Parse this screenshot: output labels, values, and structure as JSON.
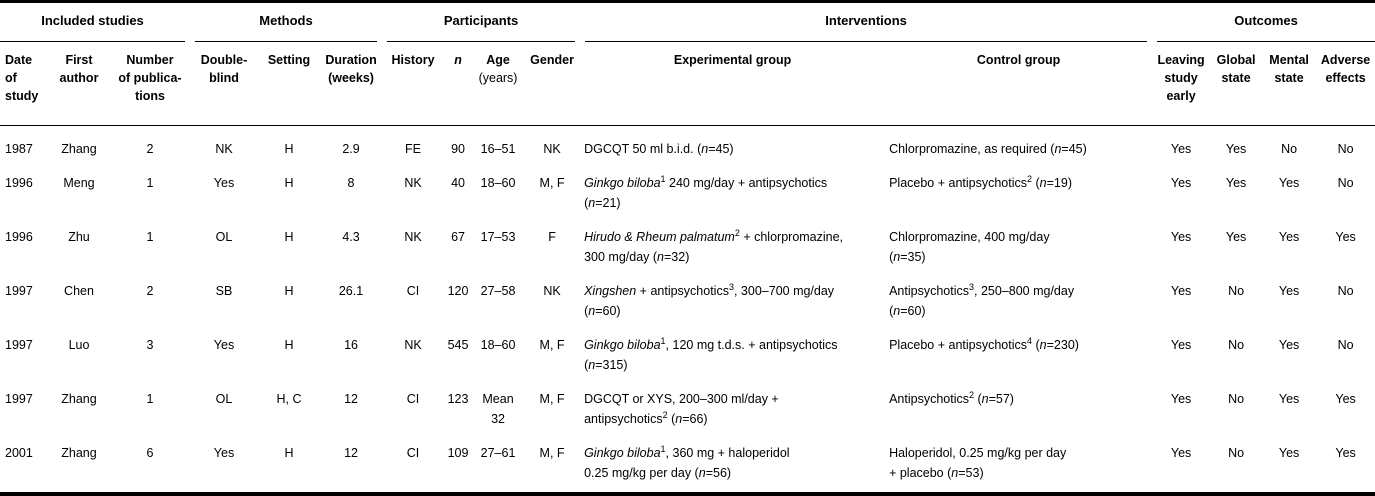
{
  "table": {
    "groups": [
      {
        "label": "Included studies",
        "span": 3
      },
      {
        "label": "Methods",
        "span": 3
      },
      {
        "label": "Participants",
        "span": 4
      },
      {
        "label": "Interventions",
        "span": 2
      },
      {
        "label": "Outcomes",
        "span": 4
      }
    ],
    "columns": [
      {
        "id": "date",
        "lines": [
          {
            "t": "Date"
          },
          {
            "t": "of"
          },
          {
            "t": "study"
          }
        ]
      },
      {
        "id": "author",
        "lines": [
          {
            "t": "First"
          },
          {
            "t": "author"
          }
        ]
      },
      {
        "id": "publications",
        "lines": [
          {
            "t": "Number"
          },
          {
            "t": "of publica-"
          },
          {
            "t": "tions"
          }
        ]
      },
      {
        "id": "double_blind",
        "lines": [
          {
            "t": "Double-"
          },
          {
            "t": "blind"
          }
        ]
      },
      {
        "id": "setting",
        "lines": [
          {
            "t": "Setting"
          }
        ]
      },
      {
        "id": "duration",
        "lines": [
          {
            "t": "Duration"
          },
          {
            "t": "(weeks)"
          }
        ]
      },
      {
        "id": "history",
        "lines": [
          {
            "t": "History"
          }
        ]
      },
      {
        "id": "n",
        "lines": [
          {
            "t": "n",
            "italic": true
          }
        ]
      },
      {
        "id": "age",
        "lines": [
          {
            "t": "Age"
          },
          {
            "t": "(years)",
            "light": true
          }
        ]
      },
      {
        "id": "gender",
        "lines": [
          {
            "t": "Gender"
          }
        ]
      },
      {
        "id": "experimental",
        "lines": [
          {
            "t": "Experimental group"
          }
        ]
      },
      {
        "id": "control",
        "lines": [
          {
            "t": "Control group"
          }
        ]
      },
      {
        "id": "leaving_study_early",
        "lines": [
          {
            "t": "Leaving"
          },
          {
            "t": "study"
          },
          {
            "t": "early"
          }
        ]
      },
      {
        "id": "global_state",
        "lines": [
          {
            "t": "Global"
          },
          {
            "t": "state"
          }
        ]
      },
      {
        "id": "mental_state",
        "lines": [
          {
            "t": "Mental"
          },
          {
            "t": "state"
          }
        ]
      },
      {
        "id": "adverse_effects",
        "lines": [
          {
            "t": "Adverse"
          },
          {
            "t": "effects"
          }
        ]
      }
    ],
    "rows": [
      {
        "date": "1987",
        "author": "Zhang",
        "publications": "2",
        "double_blind": "NK",
        "setting": "H",
        "duration": "2.9",
        "history": "FE",
        "n": "90",
        "age": "16–51",
        "gender": "NK",
        "experimental": [
          {
            "t": "DGCQT 50 ml b.i.d. ("
          },
          {
            "t": "n",
            "i": true
          },
          {
            "t": "=45)"
          }
        ],
        "control": [
          {
            "t": "Chlorpromazine, as required ("
          },
          {
            "t": "n",
            "i": true
          },
          {
            "t": "=45)"
          }
        ],
        "leaving_study_early": "Yes",
        "global_state": "Yes",
        "mental_state": "No",
        "adverse_effects": "No"
      },
      {
        "date": "1996",
        "author": "Meng",
        "publications": "1",
        "double_blind": "Yes",
        "setting": "H",
        "duration": "8",
        "history": "NK",
        "n": "40",
        "age": "18–60",
        "gender": "M, F",
        "experimental": [
          {
            "t": "Ginkgo biloba",
            "i": true
          },
          {
            "t": "1",
            "sup": true
          },
          {
            "t": " 240 mg/day + antipsychotics"
          },
          {
            "br": true
          },
          {
            "t": "("
          },
          {
            "t": "n",
            "i": true
          },
          {
            "t": "=21)"
          }
        ],
        "control": [
          {
            "t": "Placebo + antipsychotics"
          },
          {
            "t": "2",
            "sup": true
          },
          {
            "t": " ("
          },
          {
            "t": "n",
            "i": true
          },
          {
            "t": "=19)"
          }
        ],
        "leaving_study_early": "Yes",
        "global_state": "Yes",
        "mental_state": "Yes",
        "adverse_effects": "No"
      },
      {
        "date": "1996",
        "author": "Zhu",
        "publications": "1",
        "double_blind": "OL",
        "setting": "H",
        "duration": "4.3",
        "history": "NK",
        "n": "67",
        "age": "17–53",
        "gender": "F",
        "experimental": [
          {
            "t": "Hirudo & Rheum palmatum",
            "i": true
          },
          {
            "t": "2",
            "sup": true
          },
          {
            "t": " + chlorpromazine,"
          },
          {
            "br": true
          },
          {
            "t": "300 mg/day ("
          },
          {
            "t": "n",
            "i": true
          },
          {
            "t": "=32)"
          }
        ],
        "control": [
          {
            "t": "Chlorpromazine, 400 mg/day"
          },
          {
            "br": true
          },
          {
            "t": "("
          },
          {
            "t": "n",
            "i": true
          },
          {
            "t": "=35)"
          }
        ],
        "leaving_study_early": "Yes",
        "global_state": "Yes",
        "mental_state": "Yes",
        "adverse_effects": "Yes"
      },
      {
        "date": "1997",
        "author": "Chen",
        "publications": "2",
        "double_blind": "SB",
        "setting": "H",
        "duration": "26.1",
        "history": "CI",
        "n": "120",
        "age": "27–58",
        "gender": "NK",
        "experimental": [
          {
            "t": "Xingshen",
            "i": true
          },
          {
            "t": " + antipsychotics"
          },
          {
            "t": "3",
            "sup": true
          },
          {
            "t": ", 300–700 mg/day"
          },
          {
            "br": true
          },
          {
            "t": "("
          },
          {
            "t": "n",
            "i": true
          },
          {
            "t": "=60)"
          }
        ],
        "control": [
          {
            "t": "Antipsychotics"
          },
          {
            "t": "3",
            "sup": true
          },
          {
            "t": ", 250–800 mg/day"
          },
          {
            "br": true
          },
          {
            "t": "("
          },
          {
            "t": "n",
            "i": true
          },
          {
            "t": "=60)"
          }
        ],
        "leaving_study_early": "Yes",
        "global_state": "No",
        "mental_state": "Yes",
        "adverse_effects": "No"
      },
      {
        "date": "1997",
        "author": "Luo",
        "publications": "3",
        "double_blind": "Yes",
        "setting": "H",
        "duration": "16",
        "history": "NK",
        "n": "545",
        "age": "18–60",
        "gender": "M, F",
        "experimental": [
          {
            "t": "Ginkgo biloba",
            "i": true
          },
          {
            "t": "1",
            "sup": true
          },
          {
            "t": ", 120 mg t.d.s. + antipsychotics"
          },
          {
            "br": true
          },
          {
            "t": "("
          },
          {
            "t": "n",
            "i": true
          },
          {
            "t": "=315)"
          }
        ],
        "control": [
          {
            "t": "Placebo + antipsychotics"
          },
          {
            "t": "4",
            "sup": true
          },
          {
            "t": " ("
          },
          {
            "t": "n",
            "i": true
          },
          {
            "t": "=230)"
          }
        ],
        "leaving_study_early": "Yes",
        "global_state": "No",
        "mental_state": "Yes",
        "adverse_effects": "No"
      },
      {
        "date": "1997",
        "author": "Zhang",
        "publications": "1",
        "double_blind": "OL",
        "setting": "H, C",
        "duration": "12",
        "history": "CI",
        "n": "123",
        "age": "Mean 32",
        "gender": "M, F",
        "experimental": [
          {
            "t": "DGCQT or XYS, 200–300 ml/day +"
          },
          {
            "br": true
          },
          {
            "t": "antipsychotics"
          },
          {
            "t": "2",
            "sup": true
          },
          {
            "t": " ("
          },
          {
            "t": "n",
            "i": true
          },
          {
            "t": "=66)"
          }
        ],
        "control": [
          {
            "t": "Antipsychotics"
          },
          {
            "t": "2",
            "sup": true
          },
          {
            "t": " ("
          },
          {
            "t": "n",
            "i": true
          },
          {
            "t": "=57)"
          }
        ],
        "leaving_study_early": "Yes",
        "global_state": "No",
        "mental_state": "Yes",
        "adverse_effects": "Yes"
      },
      {
        "date": "2001",
        "author": "Zhang",
        "publications": "6",
        "double_blind": "Yes",
        "setting": "H",
        "duration": "12",
        "history": "CI",
        "n": "109",
        "age": "27–61",
        "gender": "M, F",
        "experimental": [
          {
            "t": "Ginkgo biloba",
            "i": true
          },
          {
            "t": "1",
            "sup": true
          },
          {
            "t": ", 360 mg + haloperidol"
          },
          {
            "br": true
          },
          {
            "t": "0.25 mg/kg per day ("
          },
          {
            "t": "n",
            "i": true
          },
          {
            "t": "=56)"
          }
        ],
        "control": [
          {
            "t": "Haloperidol, 0.25 mg/kg per day"
          },
          {
            "br": true
          },
          {
            "t": "+ placebo ("
          },
          {
            "t": "n",
            "i": true
          },
          {
            "t": "=53)"
          }
        ],
        "leaving_study_early": "Yes",
        "global_state": "No",
        "mental_state": "Yes",
        "adverse_effects": "Yes"
      }
    ]
  }
}
